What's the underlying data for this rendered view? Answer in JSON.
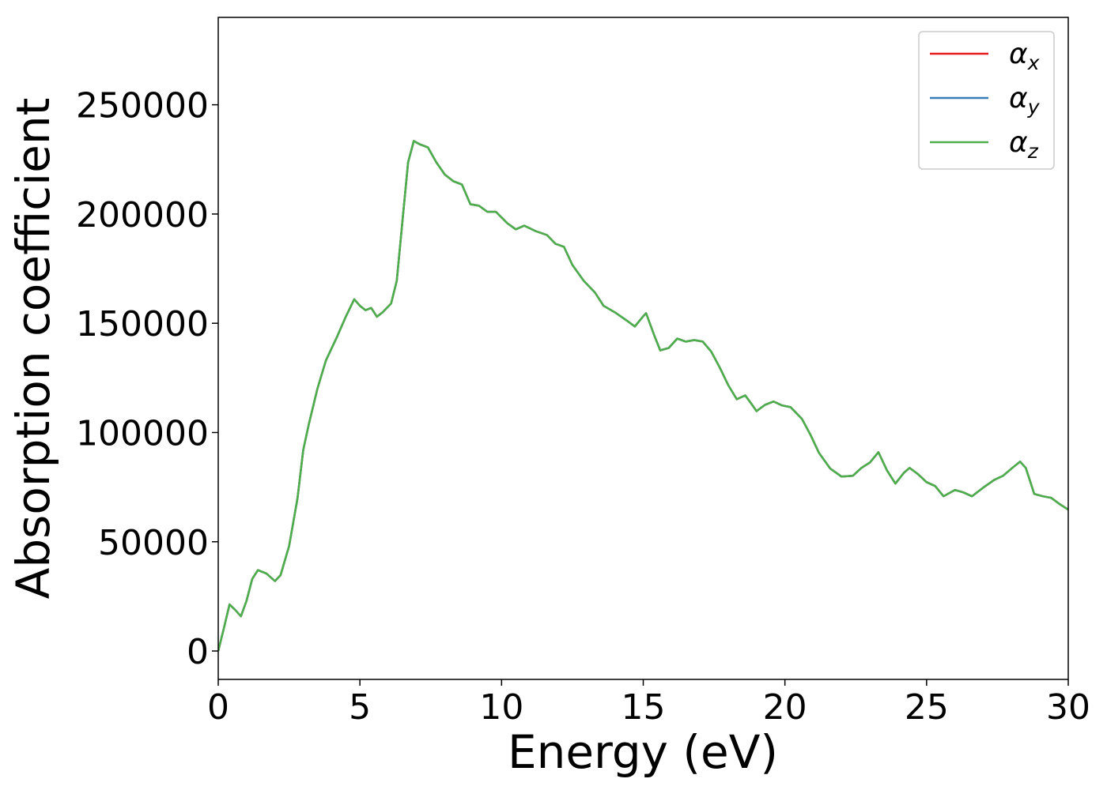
{
  "chart_data": {
    "type": "line",
    "xlabel": "Energy (eV)",
    "ylabel": "Absorption coefficient",
    "xlim": [
      0,
      30
    ],
    "ylim": [
      -13000,
      290000
    ],
    "xticks": [
      0,
      5,
      10,
      15,
      20,
      25,
      30
    ],
    "yticks": [
      0,
      50000,
      100000,
      150000,
      200000,
      250000
    ],
    "legend": "upper right",
    "x": [
      0,
      0.2,
      0.4,
      0.6,
      0.8,
      1.0,
      1.2,
      1.4,
      1.7,
      2.0,
      2.2,
      2.5,
      2.8,
      3.0,
      3.2,
      3.5,
      3.8,
      4.2,
      4.5,
      4.8,
      5.0,
      5.2,
      5.4,
      5.6,
      5.8,
      6.1,
      6.3,
      6.5,
      6.7,
      6.9,
      7.1,
      7.4,
      7.7,
      8.0,
      8.3,
      8.6,
      8.9,
      9.2,
      9.5,
      9.8,
      10.2,
      10.5,
      10.8,
      11.2,
      11.6,
      11.9,
      12.2,
      12.5,
      12.9,
      13.3,
      13.6,
      14.0,
      14.4,
      14.7,
      15.0,
      15.1,
      15.4,
      15.6,
      15.9,
      16.2,
      16.5,
      16.8,
      17.1,
      17.4,
      17.7,
      18.0,
      18.3,
      18.6,
      18.8,
      19.0,
      19.3,
      19.6,
      19.9,
      20.2,
      20.6,
      20.9,
      21.2,
      21.6,
      22.0,
      22.4,
      22.7,
      23.0,
      23.3,
      23.6,
      23.9,
      24.2,
      24.4,
      24.7,
      25.0,
      25.3,
      25.6,
      26.0,
      26.3,
      26.6,
      27.0,
      27.4,
      27.7,
      28.0,
      28.3,
      28.5,
      28.8,
      29.1,
      29.4,
      29.7,
      30.0
    ],
    "series": [
      {
        "name": "αx",
        "color": "#e41a1c",
        "values": [
          0,
          10500,
          21300,
          18800,
          15900,
          23000,
          33000,
          37000,
          35500,
          32000,
          34700,
          48000,
          70000,
          92000,
          104000,
          120000,
          133000,
          144000,
          153000,
          161000,
          158000,
          156000,
          157000,
          153000,
          155000,
          159000,
          169500,
          196500,
          223600,
          233400,
          232000,
          230500,
          223600,
          218000,
          215000,
          213500,
          204500,
          203800,
          201000,
          201000,
          195800,
          193000,
          194700,
          192200,
          190400,
          186400,
          185000,
          176700,
          169400,
          164000,
          158000,
          155000,
          151400,
          148500,
          153200,
          154600,
          144100,
          137600,
          138700,
          143000,
          141600,
          142300,
          141600,
          137000,
          129700,
          121700,
          115200,
          117000,
          113400,
          109800,
          112700,
          114200,
          112400,
          111600,
          106200,
          99000,
          90700,
          83500,
          79800,
          80200,
          83800,
          86300,
          91000,
          82700,
          76600,
          81600,
          83800,
          80900,
          77300,
          75500,
          70800,
          73700,
          72600,
          70800,
          74800,
          78400,
          80200,
          83500,
          86700,
          83800,
          71900,
          70800,
          70100,
          67200,
          64700
        ]
      },
      {
        "name": "αy",
        "color": "#377eb8",
        "values": [
          0,
          10500,
          21300,
          18800,
          15900,
          23000,
          33000,
          37000,
          35500,
          32000,
          34700,
          48000,
          70000,
          92000,
          104000,
          120000,
          133000,
          144000,
          153000,
          161000,
          158000,
          156000,
          157000,
          153000,
          155000,
          159000,
          169500,
          196500,
          223600,
          233400,
          232000,
          230500,
          223600,
          218000,
          215000,
          213500,
          204500,
          203800,
          201000,
          201000,
          195800,
          193000,
          194700,
          192200,
          190400,
          186400,
          185000,
          176700,
          169400,
          164000,
          158000,
          155000,
          151400,
          148500,
          153200,
          154600,
          144100,
          137600,
          138700,
          143000,
          141600,
          142300,
          141600,
          137000,
          129700,
          121700,
          115200,
          117000,
          113400,
          109800,
          112700,
          114200,
          112400,
          111600,
          106200,
          99000,
          90700,
          83500,
          79800,
          80200,
          83800,
          86300,
          91000,
          82700,
          76600,
          81600,
          83800,
          80900,
          77300,
          75500,
          70800,
          73700,
          72600,
          70800,
          74800,
          78400,
          80200,
          83500,
          86700,
          83800,
          71900,
          70800,
          70100,
          67200,
          64700
        ]
      },
      {
        "name": "αz",
        "color": "#4daf4a",
        "values": [
          0,
          10500,
          21300,
          18800,
          15900,
          23000,
          33000,
          37000,
          35500,
          32000,
          34700,
          48000,
          70000,
          92000,
          104000,
          120000,
          133000,
          144000,
          153000,
          161000,
          158000,
          156000,
          157000,
          153000,
          155000,
          159000,
          169500,
          196500,
          223600,
          233400,
          232000,
          230500,
          223600,
          218000,
          215000,
          213500,
          204500,
          203800,
          201000,
          201000,
          195800,
          193000,
          194700,
          192200,
          190400,
          186400,
          185000,
          176700,
          169400,
          164000,
          158000,
          155000,
          151400,
          148500,
          153200,
          154600,
          144100,
          137600,
          138700,
          143000,
          141600,
          142300,
          141600,
          137000,
          129700,
          121700,
          115200,
          117000,
          113400,
          109800,
          112700,
          114200,
          112400,
          111600,
          106200,
          99000,
          90700,
          83500,
          79800,
          80200,
          83800,
          86300,
          91000,
          82700,
          76600,
          81600,
          83800,
          80900,
          77300,
          75500,
          70800,
          73700,
          72600,
          70800,
          74800,
          78400,
          80200,
          83500,
          86700,
          83800,
          71900,
          70800,
          70100,
          67200,
          64700
        ]
      }
    ]
  }
}
